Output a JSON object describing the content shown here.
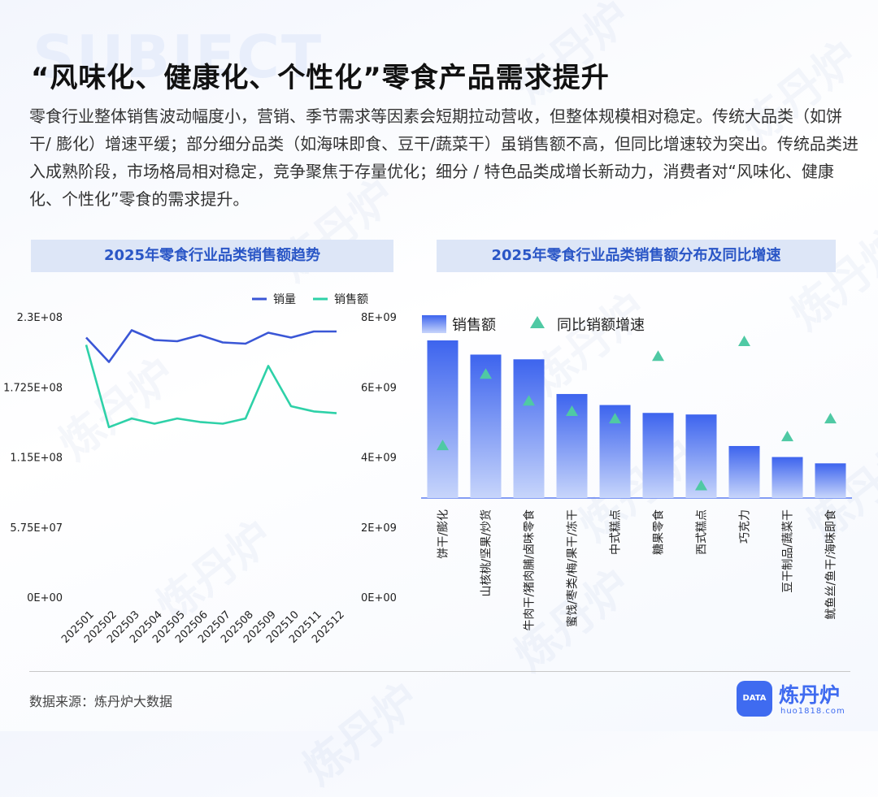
{
  "header": {
    "watermark_word": "SUBJECT",
    "title": "“风味化、健康化、个性化”零食产品需求提升",
    "description": "零食行业整体销售波动幅度小，营销、季节需求等因素会短期拉动营收，但整体规模相对稳定。传统大品类（如饼干/  膨化）增速平缓；部分细分品类（如海味即食、豆干/蔬菜干）虽销售额不高，但同比增速较为突出。传统品类进入成熟阶段，市场格局相对稳定，竞争聚焦于存量优化；细分 / 特色品类成增长新动力，消费者对“风味化、健康化、个性化”零食的需求提升。"
  },
  "colors": {
    "accent": "#3f6bf0",
    "volume_line": "#3a56d6",
    "sales_line": "#2ed1a8",
    "bar_top": "#3d64ee",
    "bar_bottom": "#c7d5fb",
    "triangle": "#4fc9a4",
    "panel_bg": "#dde6f7",
    "panel_text": "#2a56c6"
  },
  "chart_data": [
    {
      "type": "line",
      "title": "2025年零食行业品类销售额趋势",
      "x": [
        "202501",
        "202502",
        "202503",
        "202504",
        "202505",
        "202506",
        "202507",
        "202508",
        "202509",
        "202510",
        "202511",
        "202512"
      ],
      "series": [
        {
          "name": "销量",
          "axis": "left",
          "values": [
            213000000.0,
            193000000.0,
            219000000.0,
            211000000.0,
            210000000.0,
            215000000.0,
            209000000.0,
            208000000.0,
            217000000.0,
            213000000.0,
            218000000.0,
            218000000.0
          ]
        },
        {
          "name": "销售额",
          "axis": "right",
          "values": [
            7200000000.0,
            4850000000.0,
            5100000000.0,
            4950000000.0,
            5100000000.0,
            5000000000.0,
            4950000000.0,
            5100000000.0,
            6600000000.0,
            5450000000.0,
            5300000000.0,
            5250000000.0
          ]
        }
      ],
      "left_axis": {
        "ylim": [
          0,
          230000000.0
        ],
        "ticks": [
          "0E+00",
          "5.75E+07",
          "1.15E+08",
          "1.725E+08",
          "2.3E+08"
        ]
      },
      "right_axis": {
        "ylim": [
          0,
          8000000000.0
        ],
        "ticks": [
          "0E+00",
          "2E+09",
          "4E+09",
          "6E+09",
          "8E+09"
        ]
      },
      "legend": {
        "items": [
          "销量",
          "销售额"
        ],
        "position": "top-right"
      }
    },
    {
      "type": "bar",
      "title": "2025年零食行业品类销售额分布及同比增速",
      "categories": [
        "饼干/膨化",
        "山核桃/坚果/炒货",
        "牛肉干/猪肉脯/卤味零食",
        "蜜饯/枣类/梅/果干/冻干",
        "中式糕点",
        "糖果零食",
        "西式糕点",
        "巧克力",
        "豆干制品/蔬菜干",
        "鱿鱼丝/鱼干/海味即食"
      ],
      "series": [
        {
          "name": "销售额",
          "type": "bar",
          "values": [
            100,
            91,
            88,
            66,
            59,
            54,
            53,
            33,
            26,
            22
          ]
        },
        {
          "name": "同比销额增速",
          "type": "triangle",
          "values": [
            30,
            78,
            60,
            53,
            48,
            90,
            3,
            100,
            36,
            48
          ]
        }
      ],
      "note": "relative scale 0-100 (no axis shown in original)",
      "legend": {
        "items": [
          "销售额",
          "同比销额增速"
        ],
        "position": "top-left"
      }
    }
  ],
  "footer": {
    "source": "数据来源：炼丹炉大数据",
    "logo_badge": "DATA",
    "logo_name": "炼丹炉",
    "logo_url": "huo1818.com"
  },
  "watermark_text": "炼丹炉"
}
